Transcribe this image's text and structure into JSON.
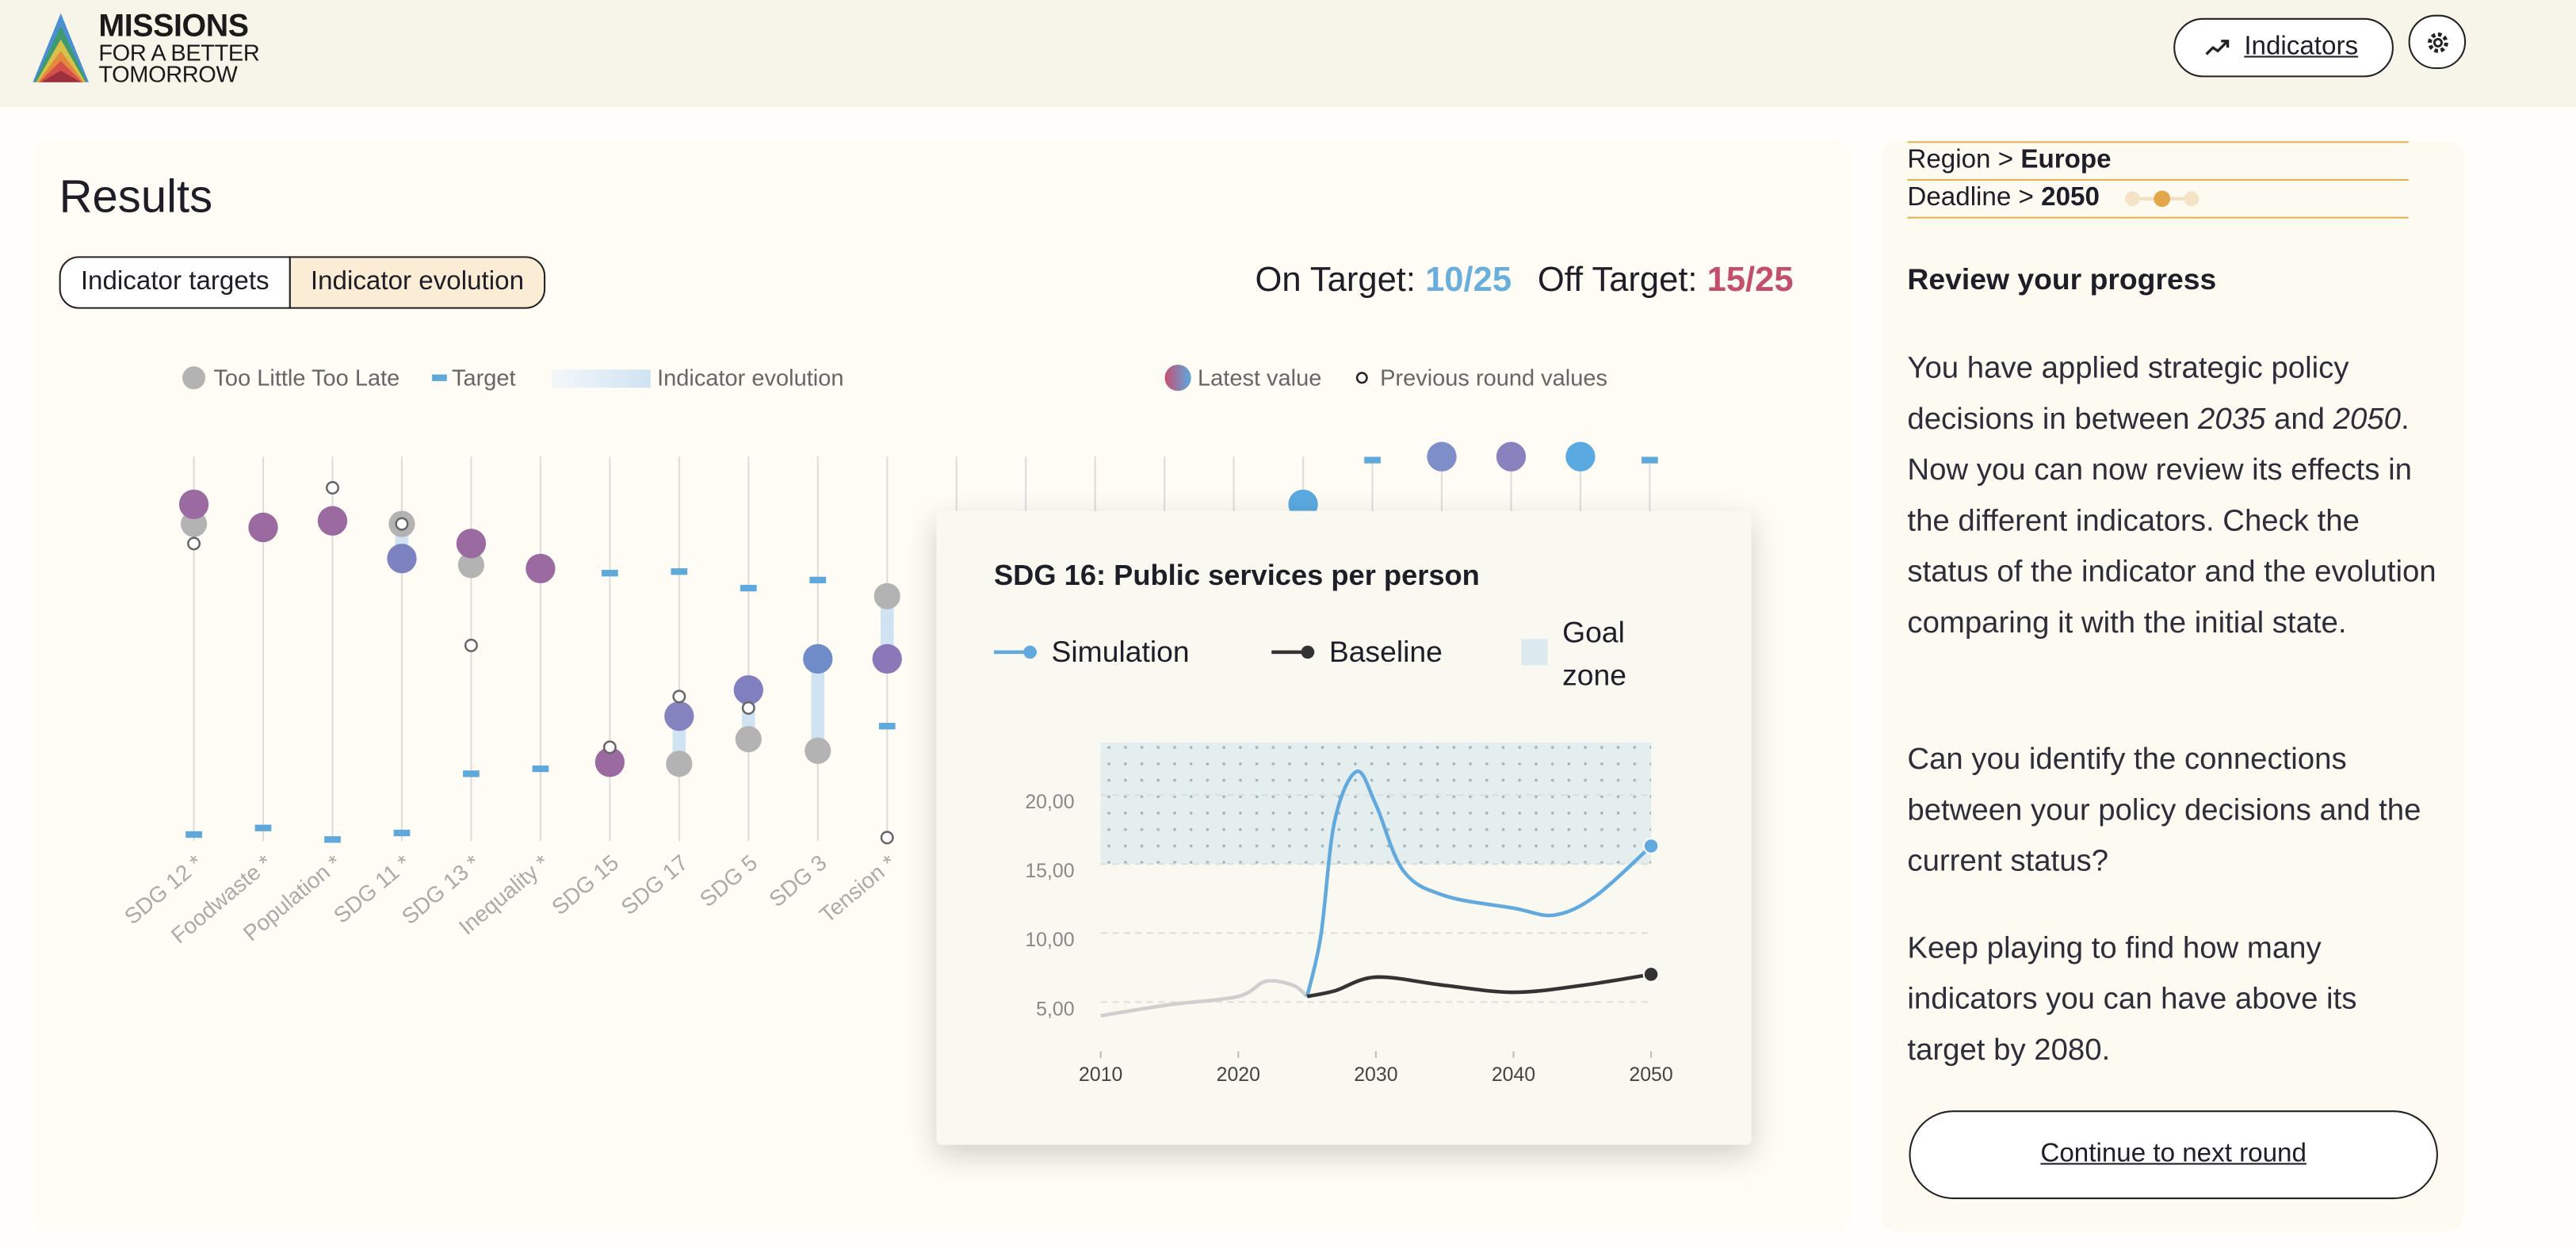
{
  "header": {
    "brand": [
      "MISSIONS",
      "FOR A BETTER",
      "TOMORROW"
    ],
    "indicators_button": "Indicators"
  },
  "results": {
    "title": "Results",
    "tabs": [
      "Indicator targets",
      "Indicator evolution"
    ],
    "on_target": {
      "label": "On Target:",
      "value": "10/25"
    },
    "off_target": {
      "label": "Off Target:",
      "value": "15/25"
    }
  },
  "chart_data": [
    {
      "type": "dot",
      "evolution_label": "Indicator evolution",
      "ylim": [
        0,
        100
      ],
      "categories": [
        "SDG 12 *",
        "Foodwaste *",
        "Population *",
        "SDG 11 *",
        "SDG 13 *",
        "Inequality *",
        "SDG 15",
        "SDG 17",
        "SDG 5",
        "SDG 3",
        "Tension *",
        null,
        null,
        null,
        null,
        null,
        null,
        null,
        null,
        null,
        null,
        null
      ],
      "series": [
        {
          "name": "Too Little Too Late",
          "color": "#b3b3b3",
          "values": [
            82.5,
            null,
            null,
            82.5,
            71.8,
            null,
            null,
            20.1,
            26.5,
            23.5,
            63.7,
            null,
            null,
            null,
            null,
            null,
            null,
            null,
            null,
            null,
            null,
            null
          ]
        },
        {
          "name": "Target",
          "color": "#5fa8dc",
          "values": [
            1.7,
            3.4,
            0.4,
            2.1,
            17.5,
            18.8,
            69.7,
            70.1,
            65.8,
            67.9,
            29.9,
            null,
            null,
            null,
            null,
            null,
            null,
            99.1,
            null,
            null,
            null,
            99.1
          ]
        },
        {
          "name": "Latest value",
          "colors": [
            "#9a6aa0",
            "#9a6aa0",
            "#9a6aa0",
            "#7d83c0",
            "#9a6aa0",
            "#9a6aa0",
            "#9a6aa0",
            "#8583bf",
            "#8080c0",
            "#6f8cc8",
            "#8a78b8",
            null,
            null,
            null,
            null,
            null,
            "#5aa9e0",
            null,
            "#7d8ec8",
            "#8a82be",
            "#5aa9e0",
            null
          ],
          "values": [
            87.6,
            81.6,
            83.3,
            73.5,
            77.4,
            70.9,
            20.5,
            32.5,
            39.3,
            47.4,
            47.4,
            null,
            null,
            null,
            null,
            null,
            87.6,
            null,
            100,
            100,
            100,
            null
          ]
        },
        {
          "name": "Previous round values",
          "color": "#666666",
          "values": [
            77.4,
            null,
            91.9,
            82.5,
            50.9,
            null,
            24.4,
            37.6,
            34.6,
            null,
            0.9,
            null,
            null,
            null,
            null,
            null,
            null,
            null,
            null,
            null,
            null,
            null
          ]
        }
      ]
    },
    {
      "type": "line",
      "title": "SDG 16: Public services per person",
      "xlim": [
        2010,
        2050
      ],
      "xticks": [
        2010,
        2020,
        2030,
        2040,
        2050
      ],
      "ylim": [
        3,
        24.5
      ],
      "yticks": [
        {
          "value": 5,
          "label": "5,00"
        },
        {
          "value": 10,
          "label": "10,00"
        },
        {
          "value": 15,
          "label": "15,00"
        },
        {
          "value": 20,
          "label": "20,00"
        }
      ],
      "goal_zone": {
        "name": "Goal zone",
        "color": "#dce9ee",
        "range": [
          15.6,
          24.4
        ]
      },
      "series": [
        {
          "color": "#cfcfcf",
          "x": [
            2010,
            2015,
            2020,
            2022,
            2024,
            2025
          ],
          "values": [
            4.6,
            5.4,
            6.0,
            7.1,
            6.8,
            6.0
          ]
        },
        {
          "name": "Simulation",
          "color": "#62a9de",
          "x": [
            2025,
            2026,
            2027,
            2028.6,
            2030,
            2032,
            2035,
            2040,
            2043,
            2046,
            2050
          ],
          "values": [
            6.0,
            10.4,
            18.7,
            22.3,
            19.9,
            15.1,
            13.3,
            12.4,
            11.9,
            13.3,
            16.9
          ]
        },
        {
          "name": "Baseline",
          "color": "#333333",
          "x": [
            2025,
            2027,
            2030,
            2035,
            2040,
            2045,
            2050
          ],
          "values": [
            6.0,
            6.4,
            7.4,
            6.8,
            6.3,
            6.8,
            7.6
          ]
        }
      ]
    }
  ],
  "sidebar": {
    "filters": [
      {
        "label": "Region >",
        "value": "Europe"
      },
      {
        "label": "Deadline >",
        "value": "2050"
      }
    ],
    "heading": "Review your progress",
    "paragraphs": [
      [
        "You have applied strategic policy decisions in between ",
        "2035",
        " and ",
        "2050",
        ". Now you can now review its effects in the different indicators. Check the status of the indicator and the evolution comparing it with the initial state."
      ],
      [
        "Can you identify the connections between your policy decisions and the current status?"
      ],
      [
        "Keep playing to find how many indicators you can have above its target by 2080."
      ]
    ],
    "button": "Continue to next round"
  }
}
